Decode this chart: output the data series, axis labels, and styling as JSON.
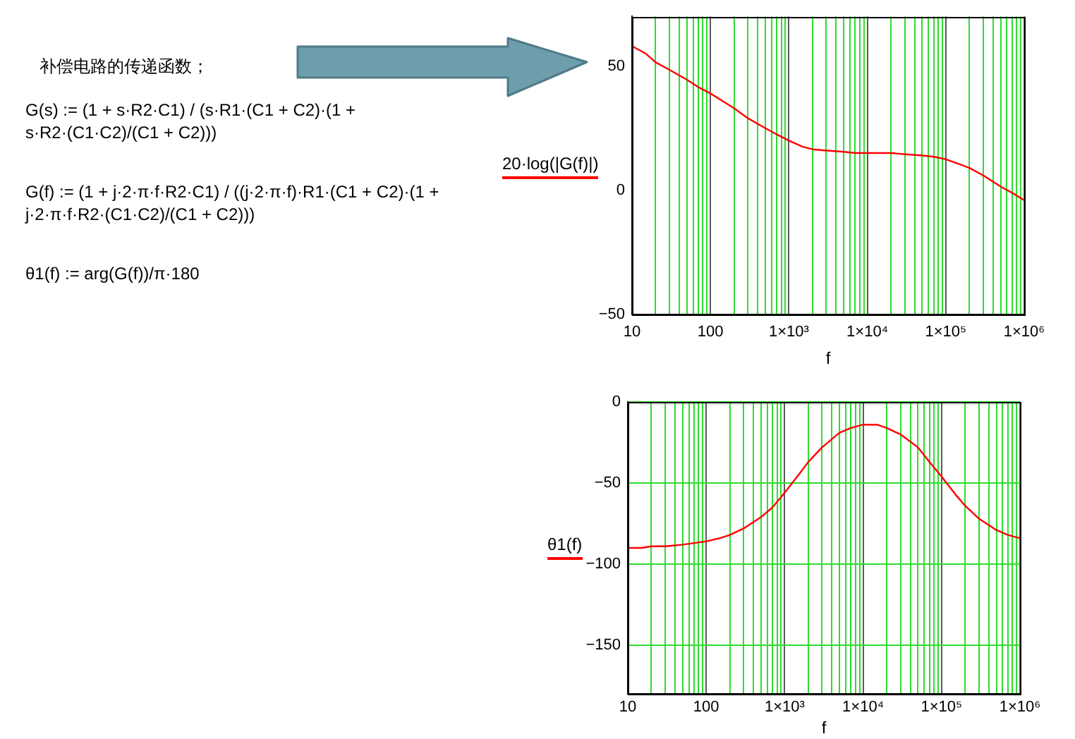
{
  "chart_data": [
    {
      "type": "other",
      "title": "补偿电路的传递函数；",
      "annotations": [
        "G(s) := (1 + s·R2·C1) / (s·R1·(C1 + C2)·(1 + s·R2·(C1·C2)/(C1 + C2)))",
        "G(f) := (1 + j·2·π·f·R2·C1) / ((j·2·π·f)·R1·(C1 + C2)·(1 + j·2·π·f·R2·(C1·C2)/(C1 + C2)))",
        "θ1(f) := arg(G(f))/π·180"
      ]
    },
    {
      "type": "line",
      "xlabel": "f",
      "ylabel": "20·log(|G(f)|)",
      "log": "x",
      "grid": "x",
      "x": [
        10,
        15,
        20,
        30,
        50,
        70,
        100,
        150,
        200,
        300,
        500,
        700,
        1000,
        1500,
        2000,
        3000,
        5000,
        7000,
        10000,
        15000,
        20000,
        30000,
        50000,
        70000,
        100000,
        150000,
        200000,
        300000,
        500000,
        700000,
        1000000
      ],
      "series": [
        {
          "color": "#ff0000",
          "values": [
            58,
            55,
            51.5,
            48.5,
            44.5,
            41.5,
            39,
            35.5,
            33,
            29,
            25,
            22.5,
            20,
            17.5,
            16.5,
            16,
            15.5,
            15,
            15,
            15,
            15,
            14.5,
            14,
            13.5,
            12.5,
            10.5,
            9,
            6,
            1.5,
            -1,
            -4
          ]
        }
      ],
      "xlim": [
        10,
        1000000
      ],
      "xticks": [
        {
          "value": 10,
          "label": "10"
        },
        {
          "value": 20,
          "label": null
        },
        {
          "value": 30,
          "label": null
        },
        {
          "value": 40,
          "label": null
        },
        {
          "value": 50,
          "label": null
        },
        {
          "value": 60,
          "label": null
        },
        {
          "value": 70,
          "label": null
        },
        {
          "value": 80,
          "label": null
        },
        {
          "value": 90,
          "label": null
        },
        {
          "value": 100,
          "label": "100"
        },
        {
          "value": 200,
          "label": null
        },
        {
          "value": 300,
          "label": null
        },
        {
          "value": 400,
          "label": null
        },
        {
          "value": 500,
          "label": null
        },
        {
          "value": 600,
          "label": null
        },
        {
          "value": 700,
          "label": null
        },
        {
          "value": 800,
          "label": null
        },
        {
          "value": 900,
          "label": null
        },
        {
          "value": 1000,
          "label": "1×10³"
        },
        {
          "value": 2000,
          "label": null
        },
        {
          "value": 3000,
          "label": null
        },
        {
          "value": 4000,
          "label": null
        },
        {
          "value": 5000,
          "label": null
        },
        {
          "value": 6000,
          "label": null
        },
        {
          "value": 7000,
          "label": null
        },
        {
          "value": 8000,
          "label": null
        },
        {
          "value": 9000,
          "label": null
        },
        {
          "value": 10000,
          "label": "1×10⁴"
        },
        {
          "value": 20000,
          "label": null
        },
        {
          "value": 30000,
          "label": null
        },
        {
          "value": 40000,
          "label": null
        },
        {
          "value": 50000,
          "label": null
        },
        {
          "value": 60000,
          "label": null
        },
        {
          "value": 70000,
          "label": null
        },
        {
          "value": 80000,
          "label": null
        },
        {
          "value": 90000,
          "label": null
        },
        {
          "value": 100000,
          "label": "1×10⁵"
        },
        {
          "value": 200000,
          "label": null
        },
        {
          "value": 300000,
          "label": null
        },
        {
          "value": 400000,
          "label": null
        },
        {
          "value": 500000,
          "label": null
        },
        {
          "value": 600000,
          "label": null
        },
        {
          "value": 700000,
          "label": null
        },
        {
          "value": 800000,
          "label": null
        },
        {
          "value": 900000,
          "label": null
        },
        {
          "value": 1000000,
          "label": "1×10⁶"
        }
      ],
      "ylim": [
        -50,
        70
      ],
      "yticks": [
        -50,
        0,
        50
      ]
    },
    {
      "type": "line",
      "xlabel": "f",
      "ylabel": "θ1(f)",
      "log": "x",
      "grid": true,
      "x": [
        10,
        15,
        20,
        30,
        50,
        70,
        100,
        150,
        200,
        300,
        500,
        700,
        1000,
        1500,
        2000,
        3000,
        5000,
        7000,
        10000,
        15000,
        20000,
        30000,
        50000,
        70000,
        100000,
        150000,
        200000,
        300000,
        500000,
        700000,
        1000000
      ],
      "series": [
        {
          "color": "#ff0000",
          "values": [
            -90,
            -90,
            -89,
            -89,
            -88,
            -87,
            -86,
            -84,
            -82,
            -78,
            -71,
            -65,
            -56,
            -45,
            -37,
            -28,
            -19,
            -16,
            -14,
            -14,
            -16,
            -20,
            -28,
            -37,
            -46,
            -57,
            -64,
            -72,
            -79,
            -82,
            -84
          ]
        }
      ],
      "xlim": [
        10,
        1000000
      ],
      "xticks": [
        {
          "value": 10,
          "label": "10"
        },
        {
          "value": 20,
          "label": null
        },
        {
          "value": 30,
          "label": null
        },
        {
          "value": 40,
          "label": null
        },
        {
          "value": 50,
          "label": null
        },
        {
          "value": 60,
          "label": null
        },
        {
          "value": 70,
          "label": null
        },
        {
          "value": 80,
          "label": null
        },
        {
          "value": 90,
          "label": null
        },
        {
          "value": 100,
          "label": "100"
        },
        {
          "value": 200,
          "label": null
        },
        {
          "value": 300,
          "label": null
        },
        {
          "value": 400,
          "label": null
        },
        {
          "value": 500,
          "label": null
        },
        {
          "value": 600,
          "label": null
        },
        {
          "value": 700,
          "label": null
        },
        {
          "value": 800,
          "label": null
        },
        {
          "value": 900,
          "label": null
        },
        {
          "value": 1000,
          "label": "1×10³"
        },
        {
          "value": 2000,
          "label": null
        },
        {
          "value": 3000,
          "label": null
        },
        {
          "value": 4000,
          "label": null
        },
        {
          "value": 5000,
          "label": null
        },
        {
          "value": 6000,
          "label": null
        },
        {
          "value": 7000,
          "label": null
        },
        {
          "value": 8000,
          "label": null
        },
        {
          "value": 9000,
          "label": null
        },
        {
          "value": 10000,
          "label": "1×10⁴"
        },
        {
          "value": 20000,
          "label": null
        },
        {
          "value": 30000,
          "label": null
        },
        {
          "value": 40000,
          "label": null
        },
        {
          "value": 50000,
          "label": null
        },
        {
          "value": 60000,
          "label": null
        },
        {
          "value": 70000,
          "label": null
        },
        {
          "value": 80000,
          "label": null
        },
        {
          "value": 90000,
          "label": null
        },
        {
          "value": 100000,
          "label": "1×10⁵"
        },
        {
          "value": 200000,
          "label": null
        },
        {
          "value": 300000,
          "label": null
        },
        {
          "value": 400000,
          "label": null
        },
        {
          "value": 500000,
          "label": null
        },
        {
          "value": 600000,
          "label": null
        },
        {
          "value": 700000,
          "label": null
        },
        {
          "value": 800000,
          "label": null
        },
        {
          "value": 900000,
          "label": null
        },
        {
          "value": 1000000,
          "label": "1×10⁶"
        }
      ],
      "ylim": [
        -180,
        0
      ],
      "yticks": [
        -150,
        -100,
        -50,
        0
      ]
    }
  ]
}
